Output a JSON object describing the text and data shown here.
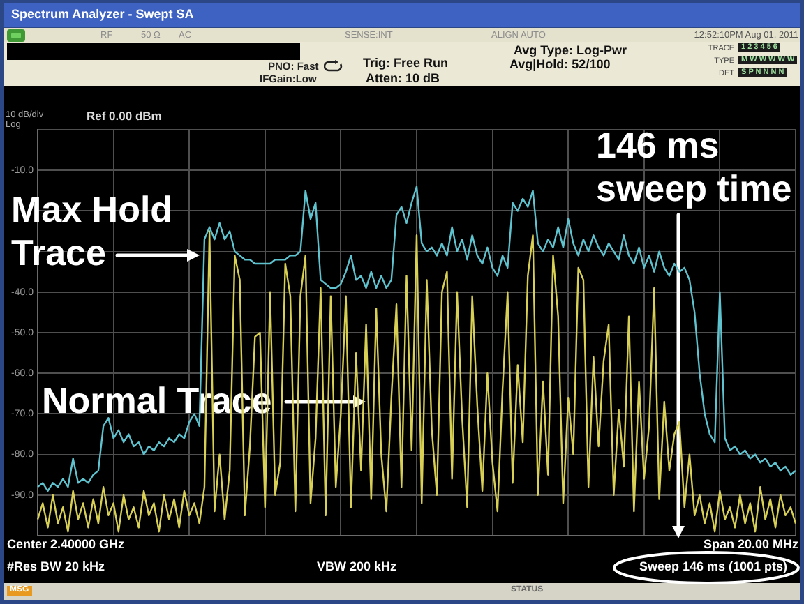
{
  "chart_data": {
    "type": "line",
    "title": "Spectrum Analyzer - Swept SA",
    "categories": [
      null,
      null,
      null,
      null,
      null,
      null,
      null,
      null,
      null,
      null,
      null,
      null,
      null,
      null,
      null,
      null,
      null,
      null,
      null,
      null,
      null,
      null,
      null,
      null,
      null,
      null,
      null,
      null,
      null,
      null,
      null,
      null,
      null,
      null,
      null,
      null,
      null,
      null,
      null,
      null,
      null,
      null,
      null,
      null,
      null,
      null,
      null,
      null,
      null,
      null,
      null,
      null,
      null,
      null,
      null,
      null,
      null,
      null,
      null,
      null,
      null,
      null,
      null,
      null,
      null,
      null,
      null,
      null,
      null,
      null,
      null,
      null,
      null,
      null,
      null,
      null,
      null,
      null,
      null,
      null,
      null,
      null,
      null,
      null,
      null,
      null,
      null,
      null,
      null,
      null,
      null,
      null,
      null,
      null,
      null,
      null,
      null,
      null,
      null,
      null,
      null,
      null,
      null,
      null,
      null,
      null,
      null,
      null,
      null,
      null,
      null,
      null,
      null,
      null,
      null,
      null,
      null,
      null,
      null,
      null,
      null,
      null,
      null,
      null,
      null,
      null,
      null,
      null,
      null,
      null,
      null,
      null,
      null,
      null,
      null,
      null,
      null,
      null,
      null,
      null,
      null,
      null,
      null,
      null,
      null,
      null,
      null,
      null,
      null,
      null,
      null
    ],
    "series": [
      {
        "name": "Max Hold Trace",
        "color": "#5fc3cf",
        "values": [
          -88,
          -87,
          -89,
          -87,
          -88,
          -86,
          -88,
          -81,
          -87,
          -86,
          -87,
          -85,
          -84,
          -73,
          -71,
          -76,
          -74,
          -77,
          -75,
          -78,
          -77,
          -80,
          -78,
          -79,
          -77,
          -78,
          -76,
          -77,
          -75,
          -76,
          -72,
          -70,
          -73,
          -27,
          -24,
          -27,
          -23,
          -27,
          -25,
          -30,
          -31,
          -32,
          -32,
          -33,
          -33,
          -33,
          -33,
          -32,
          -32,
          -32,
          -31,
          -31,
          -30,
          -15,
          -22,
          -18,
          -37,
          -38,
          -39,
          -39,
          -38,
          -35,
          -31,
          -37,
          -36,
          -39,
          -35,
          -39,
          -36,
          -39,
          -37,
          -21,
          -19,
          -23,
          -18,
          -14,
          -28,
          -30,
          -29,
          -31,
          -28,
          -31,
          -24,
          -30,
          -27,
          -32,
          -26,
          -31,
          -33,
          -29,
          -34,
          -36,
          -31,
          -34,
          -18,
          -20,
          -17,
          -19,
          -15,
          -28,
          -30,
          -27,
          -29,
          -24,
          -29,
          -22,
          -28,
          -31,
          -27,
          -30,
          -26,
          -29,
          -31,
          -28,
          -30,
          -32,
          -26,
          -31,
          -33,
          -29,
          -34,
          -31,
          -35,
          -30,
          -34,
          -36,
          -33,
          -35,
          -34,
          -37,
          -45,
          -60,
          -70,
          -75,
          -77,
          -40,
          -76,
          -79,
          -78,
          -80,
          -79,
          -81,
          -80,
          -82,
          -81,
          -83,
          -82,
          -84,
          -83,
          -85,
          -84
        ]
      },
      {
        "name": "Normal Trace",
        "color": "#d8cf55",
        "values": [
          -96,
          -92,
          -98,
          -90,
          -97,
          -93,
          -99,
          -89,
          -96,
          -92,
          -98,
          -91,
          -97,
          -88,
          -95,
          -92,
          -99,
          -90,
          -96,
          -93,
          -98,
          -89,
          -95,
          -92,
          -99,
          -90,
          -96,
          -91,
          -98,
          -89,
          -95,
          -92,
          -97,
          -88,
          -25,
          -94,
          -80,
          -96,
          -84,
          -31,
          -37,
          -95,
          -78,
          -51,
          -50,
          -93,
          -40,
          -90,
          -82,
          -33,
          -41,
          -94,
          -41,
          -31,
          -92,
          -76,
          -39,
          -95,
          -41,
          -88,
          -70,
          -41,
          -93,
          -55,
          -84,
          -48,
          -91,
          -44,
          -80,
          -94,
          -66,
          -43,
          -88,
          -36,
          -79,
          -26,
          -92,
          -37,
          -74,
          -90,
          -40,
          -35,
          -86,
          -40,
          -71,
          -93,
          -41,
          -68,
          -89,
          -60,
          -82,
          -94,
          -64,
          -40,
          -87,
          -58,
          -77,
          -36,
          -26,
          -90,
          -62,
          -85,
          -31,
          -46,
          -92,
          -66,
          -80,
          -34,
          -37,
          -88,
          -56,
          -78,
          -57,
          -48,
          -90,
          -69,
          -83,
          -46,
          -94,
          -62,
          -86,
          -73,
          -39,
          -91,
          -67,
          -84,
          -75,
          -72,
          -93,
          -80,
          -95,
          -90,
          -97,
          -92,
          -99,
          -89,
          -96,
          -93,
          -98,
          -90,
          -97,
          -92,
          -99,
          -88,
          -96,
          -91,
          -98,
          -90,
          -95,
          -93,
          -97
        ]
      }
    ],
    "ylim": [
      -100,
      0
    ],
    "yticks": [
      {
        "value": -100,
        "label": null
      },
      {
        "value": -90,
        "label": "-90.0"
      },
      {
        "value": -80,
        "label": "-80.0"
      },
      {
        "value": -70,
        "label": "-70.0"
      },
      {
        "value": -60,
        "label": "-60.0"
      },
      {
        "value": -50,
        "label": "-50.0"
      },
      {
        "value": -40,
        "label": "-40.0"
      },
      {
        "value": -30,
        "label": null
      },
      {
        "value": -20,
        "label": null
      },
      {
        "value": -10,
        "label": "-10.0"
      },
      {
        "value": 0,
        "label": null
      }
    ],
    "grid": true,
    "tick_labels": "y",
    "annotations": [
      "RF",
      "50 Ω",
      "AC",
      "SENSE:INT",
      "ALIGN AUTO",
      "12:52:10PM Aug 01, 2011",
      "PNO: Fast",
      "IFGain:Low",
      "Trig: Free Run",
      "Atten: 10 dB",
      "Avg Type: Log-Pwr",
      "Avg|Hold: 52/100",
      "TRACE",
      "1 2 3 4 5 6",
      "TYPE",
      "M W W W W W",
      "DET",
      "S P N N N N",
      "10 dB/div",
      "Log",
      "Ref 0.00 dBm",
      "Center 2.40000 GHz",
      "Span 20.00 MHz",
      "#Res BW 20 kHz",
      "VBW 200 kHz",
      "Sweep 146 ms (1001 pts)",
      "MSG",
      "STATUS",
      "146 ms sweep time"
    ]
  }
}
